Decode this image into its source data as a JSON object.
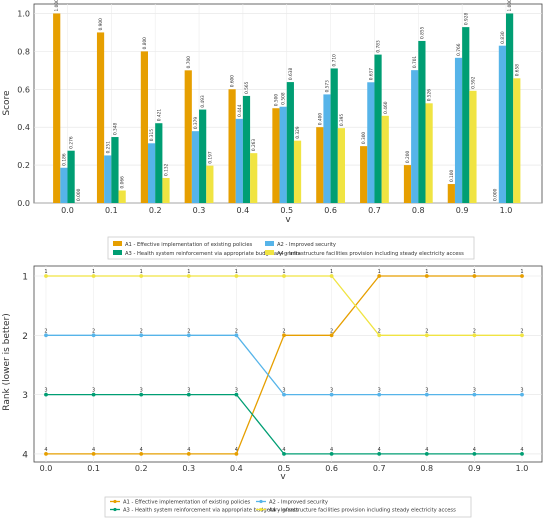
{
  "chart_data": [
    {
      "type": "bar",
      "xlabel": "v",
      "ylabel": "Score",
      "ylim": [
        0,
        1.05
      ],
      "yticks": [
        "0.0",
        "0.2",
        "0.4",
        "0.6",
        "0.8",
        "1.0"
      ],
      "categories": [
        "0.0",
        "0.1",
        "0.2",
        "0.3",
        "0.4",
        "0.5",
        "0.6",
        "0.7",
        "0.8",
        "0.9",
        "1.0"
      ],
      "series": [
        {
          "name": "A1 - Effective implementation of existing policies",
          "color": "#e69f00",
          "values": [
            1.0,
            0.9,
            0.8,
            0.7,
            0.6,
            0.5,
            0.4,
            0.3,
            0.2,
            0.1,
            0.0
          ],
          "labels": [
            "1.000",
            "0.900",
            "0.800",
            "0.700",
            "0.600",
            "0.500",
            "0.400",
            "0.300",
            "0.200",
            "0.100",
            "0.000"
          ]
        },
        {
          "name": "A2 - Improved security",
          "color": "#56b4e9",
          "values": [
            0.186,
            0.251,
            0.315,
            0.379,
            0.444,
            0.508,
            0.573,
            0.637,
            0.701,
            0.766,
            0.83
          ],
          "labels": [
            "0.186",
            "0.251",
            "0.315",
            "0.379",
            "0.444",
            "0.508",
            "0.573",
            "0.637",
            "0.701",
            "0.766",
            "0.830"
          ]
        },
        {
          "name": "A3 - Health system reinforcement via appropriate budgetary grants",
          "color": "#009e73",
          "values": [
            0.276,
            0.348,
            0.421,
            0.493,
            0.565,
            0.638,
            0.71,
            0.783,
            0.855,
            0.928,
            1.0
          ],
          "labels": [
            "0.276",
            "0.348",
            "0.421",
            "0.493",
            "0.565",
            "0.638",
            "0.710",
            "0.783",
            "0.855",
            "0.928",
            "1.000"
          ]
        },
        {
          "name": "A4 - Infrastructure facilities provision including steady electricity access",
          "color": "#f0e442",
          "values": [
            0.0,
            0.066,
            0.132,
            0.197,
            0.263,
            0.329,
            0.395,
            0.46,
            0.526,
            0.592,
            0.658
          ],
          "labels": [
            "0.000",
            "0.066",
            "0.132",
            "0.197",
            "0.263",
            "0.329",
            "0.395",
            "0.460",
            "0.526",
            "0.592",
            "0.658"
          ]
        }
      ],
      "legend": "below"
    },
    {
      "type": "line",
      "xlabel": "v",
      "ylabel": "Rank (lower is better)",
      "y_inverted": true,
      "yticks": [
        "1",
        "2",
        "3",
        "4"
      ],
      "x": [
        0.0,
        0.1,
        0.2,
        0.3,
        0.4,
        0.5,
        0.6,
        0.7,
        0.8,
        0.9,
        1.0
      ],
      "xticks": [
        "0.0",
        "0.1",
        "0.2",
        "0.3",
        "0.4",
        "0.5",
        "0.6",
        "0.7",
        "0.8",
        "0.9",
        "1.0"
      ],
      "series": [
        {
          "name": "A1 - Effective implementation of existing policies",
          "color": "#e69f00",
          "values": [
            4,
            4,
            4,
            4,
            4,
            2,
            2,
            1,
            1,
            1,
            1
          ]
        },
        {
          "name": "A2 - Improved security",
          "color": "#56b4e9",
          "values": [
            2,
            2,
            2,
            2,
            2,
            3,
            3,
            3,
            3,
            3,
            3
          ]
        },
        {
          "name": "A3 - Health system reinforcement via appropriate budgetary grants",
          "color": "#009e73",
          "values": [
            3,
            3,
            3,
            3,
            3,
            4,
            4,
            4,
            4,
            4,
            4
          ]
        },
        {
          "name": "A4 - Infrastructure facilities provision including steady electricity access",
          "color": "#f0e442",
          "values": [
            1,
            1,
            1,
            1,
            1,
            1,
            1,
            2,
            2,
            2,
            2
          ]
        }
      ],
      "legend": "below"
    }
  ]
}
